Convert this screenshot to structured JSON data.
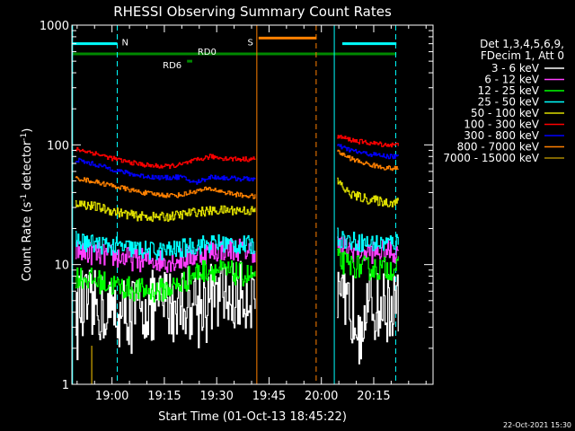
{
  "chart_data": {
    "type": "line",
    "title": "RHESSI Observing Summary Count Rates",
    "xlabel": "Start Time (01-Oct-13 18:45:22)",
    "ylabel_main": "Count Rate (s",
    "ylabel_sup1": "-1",
    "ylabel_mid": " detector",
    "ylabel_sup2": "-1",
    "ylabel_end": ")",
    "y_scale": "log",
    "ylim": [
      1,
      1000
    ],
    "xlim_minutes": [
      -11.5,
      92
    ],
    "x_ticks": [
      {
        "t": 0,
        "label": "19:00"
      },
      {
        "t": 15,
        "label": "19:15"
      },
      {
        "t": 30,
        "label": "19:30"
      },
      {
        "t": 45,
        "label": "19:45"
      },
      {
        "t": 60,
        "label": "20:00"
      },
      {
        "t": 75,
        "label": "20:15"
      }
    ],
    "y_ticks": [
      {
        "v": 1,
        "label": "1"
      },
      {
        "v": 10,
        "label": "10"
      },
      {
        "v": 100,
        "label": "100"
      },
      {
        "v": 1000,
        "label": "1000"
      }
    ],
    "legend": {
      "header1": "Det 1,3,4,5,6,9,",
      "header2": "FDecim 1, Att 0",
      "placement": "right"
    },
    "series": [
      {
        "name": "3 - 6 keV",
        "color": "#ffffff",
        "seg1": [
          4.5,
          4.6,
          4.2,
          4.0,
          4.2,
          4.5,
          4.8,
          5.0,
          5.2,
          5.5,
          5.6,
          5.4,
          6.0
        ],
        "seg2": [
          4.4,
          4.3,
          4.2,
          4.3,
          4.4,
          4.5,
          4.4
        ],
        "noise": 0.3
      },
      {
        "name": "6 - 12 keV",
        "color": "#ff3fff",
        "seg1": [
          13,
          12.5,
          12,
          11.5,
          11,
          10.8,
          10.8,
          11,
          12,
          13,
          13.5,
          13.5,
          13
        ],
        "seg2": [
          14.5,
          13.5,
          13,
          12.8,
          12.8,
          13,
          12.5
        ],
        "noise": 0.1
      },
      {
        "name": "12 - 25 keV",
        "color": "#00ff00",
        "seg1": [
          8,
          7.5,
          7,
          6.5,
          6.2,
          6,
          6.2,
          6.8,
          8.5,
          9.2,
          8.7,
          8.3,
          8
        ],
        "seg2": [
          11,
          10,
          9.6,
          9.3,
          9.2,
          9.3,
          9.4
        ],
        "noise": 0.1
      },
      {
        "name": "25 - 50 keV",
        "color": "#00ffff",
        "seg1": [
          16,
          15,
          14.5,
          14,
          13.5,
          13,
          13,
          13.5,
          14.5,
          15,
          15,
          14.5,
          14.5
        ],
        "seg2": [
          17,
          16,
          15.5,
          15,
          15,
          15.2,
          15.5
        ],
        "noise": 0.08
      },
      {
        "name": "50 - 100 keV",
        "color": "#dddd00",
        "seg1": [
          33,
          31,
          29,
          27,
          25.5,
          25,
          25,
          26,
          27.5,
          28,
          28.5,
          28.5,
          28
        ],
        "seg2": [
          50,
          40,
          37,
          35,
          34,
          33,
          33
        ],
        "noise": 0.04
      },
      {
        "name": "100 - 300 keV",
        "color": "#ff0000",
        "seg1": [
          92,
          87,
          80,
          74,
          70,
          67,
          66,
          68,
          74,
          80,
          77,
          76,
          76
        ],
        "seg2": [
          118,
          112,
          107,
          104,
          102,
          100,
          100
        ],
        "noise": 0.02
      },
      {
        "name": "300 - 800 keV",
        "color": "#0000ff",
        "seg1": [
          75,
          70,
          65,
          60,
          56,
          54,
          53,
          54,
          48,
          54,
          53,
          52,
          52
        ],
        "seg2": [
          98,
          92,
          87,
          84,
          82,
          80,
          80
        ],
        "noise": 0.02
      },
      {
        "name": "800 - 7000 keV",
        "color": "#ff8000",
        "seg1": [
          53,
          50,
          47,
          44,
          41,
          39,
          38,
          38,
          41,
          43,
          40,
          38,
          37
        ],
        "seg2": [
          88,
          79,
          73,
          69,
          66,
          64,
          63
        ],
        "noise": 0.02
      },
      {
        "name": "7000 - 15000 keV",
        "color": "#aa8800",
        "seg1": [],
        "seg2": [],
        "noise": 0
      }
    ],
    "segments_time": {
      "seg1": [
        -10.5,
        -7.5,
        -4.5,
        -1.5,
        1.5,
        4.5,
        7.5,
        10.5,
        13.5,
        16.5,
        19.5,
        22.5,
        25.5,
        28.5,
        31.5,
        34.5,
        37.5,
        40.5
      ],
      "seg1_start": -10.5,
      "seg1_end": 41,
      "seg2_start": 64.5,
      "seg2_end": 82
    },
    "bars": [
      {
        "label": "N",
        "color": "#00ffff",
        "value": 700,
        "t_start": -11.5,
        "t_end": 1.5,
        "label_pos": "right"
      },
      {
        "label": "N",
        "color": "#00ffff",
        "value": 700,
        "t_start": 66,
        "t_end": 81.5,
        "label_pos": "none"
      },
      {
        "label": "S",
        "color": "#ff8000",
        "value": 780,
        "t_start": 42,
        "t_end": 58.5,
        "label_pos": "left"
      },
      {
        "label": "RD0",
        "color": "#008800",
        "value": 575,
        "t_start": -11.5,
        "t_end": 81.5,
        "label_pos": "mid"
      },
      {
        "label": "RD6",
        "color": "#008800",
        "value": 500,
        "t_start": 21.5,
        "t_end": 23,
        "label_pos": "left"
      }
    ],
    "vlines": [
      {
        "t": -11.3,
        "color": "#00ffff",
        "style": "solid"
      },
      {
        "t": 1.5,
        "color": "#00ffff",
        "style": "dashed"
      },
      {
        "t": 41.5,
        "color": "#ff8000",
        "style": "solid"
      },
      {
        "t": 58.5,
        "color": "#ff8000",
        "style": "dashed"
      },
      {
        "t": 63.7,
        "color": "#00ffff",
        "style": "solid"
      },
      {
        "t": 81.3,
        "color": "#00ffff",
        "style": "dashed"
      }
    ],
    "spike_7000": {
      "t": -5.8,
      "value": 2.1
    },
    "timestamp": "22-Oct-2021 15:30"
  }
}
